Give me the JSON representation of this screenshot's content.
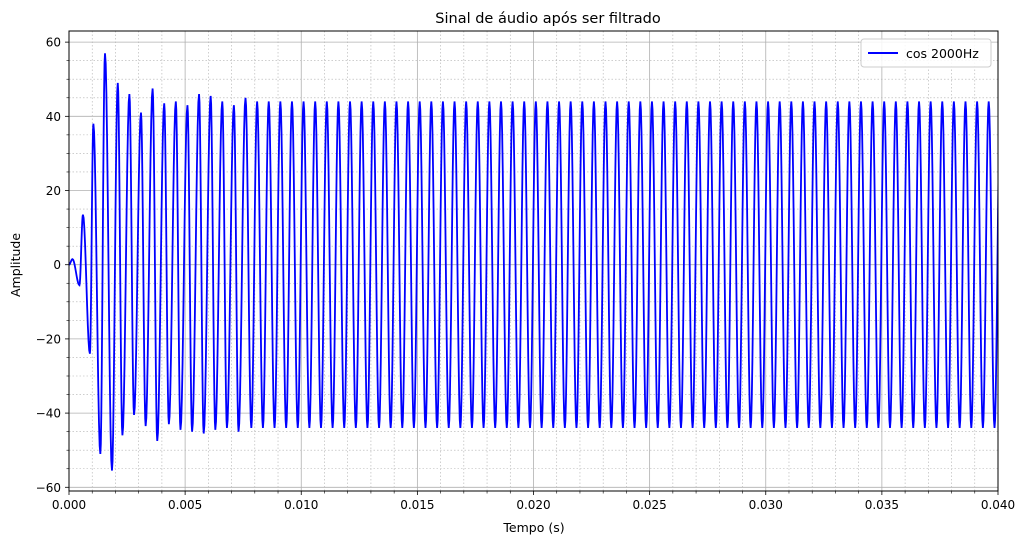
{
  "chart_data": {
    "type": "line",
    "title": "Sinal de áudio após ser filtrado",
    "xlabel": "Tempo (s)",
    "ylabel": "Amplitude",
    "xlim": [
      0.0,
      0.04
    ],
    "ylim": [
      -61,
      63
    ],
    "x_ticks": [
      "0.000",
      "0.005",
      "0.010",
      "0.015",
      "0.020",
      "0.025",
      "0.030",
      "0.035",
      "0.040"
    ],
    "y_ticks": [
      "−60",
      "−40",
      "−20",
      "0",
      "20",
      "40",
      "60"
    ],
    "grid": true,
    "minor_grid": true,
    "legend_position": "top-right",
    "series": [
      {
        "name": "cos 2000Hz",
        "color": "#0000ff",
        "frequency_hz": 2000,
        "steady_amplitude": 44,
        "duration_s": 0.04,
        "transient_extrema": [
          {
            "t": 0.00015,
            "v": 1.5
          },
          {
            "t": 0.00045,
            "v": -5.5
          },
          {
            "t": 0.0006,
            "v": 13.5
          },
          {
            "t": 0.0009,
            "v": -24.0
          },
          {
            "t": 0.00105,
            "v": 38.0
          },
          {
            "t": 0.00135,
            "v": -51.0
          },
          {
            "t": 0.00155,
            "v": 57.0
          },
          {
            "t": 0.00185,
            "v": -55.5
          },
          {
            "t": 0.0021,
            "v": 49.0
          },
          {
            "t": 0.0023,
            "v": -46.0
          },
          {
            "t": 0.0026,
            "v": 46.0
          },
          {
            "t": 0.0028,
            "v": -40.5
          },
          {
            "t": 0.0031,
            "v": 41.0
          },
          {
            "t": 0.0033,
            "v": -43.5
          },
          {
            "t": 0.0036,
            "v": 47.5
          },
          {
            "t": 0.0038,
            "v": -47.5
          },
          {
            "t": 0.0041,
            "v": 43.5
          },
          {
            "t": 0.0043,
            "v": -43.0
          },
          {
            "t": 0.0046,
            "v": 44.0
          },
          {
            "t": 0.0048,
            "v": -44.5
          },
          {
            "t": 0.0051,
            "v": 43.0
          },
          {
            "t": 0.0053,
            "v": -45.0
          },
          {
            "t": 0.0056,
            "v": 46.0
          },
          {
            "t": 0.0058,
            "v": -45.5
          },
          {
            "t": 0.0061,
            "v": 45.5
          },
          {
            "t": 0.0063,
            "v": -44.5
          },
          {
            "t": 0.0066,
            "v": 44.0
          },
          {
            "t": 0.0068,
            "v": -44.0
          },
          {
            "t": 0.0071,
            "v": 43.0
          },
          {
            "t": 0.0073,
            "v": -45.0
          },
          {
            "t": 0.0076,
            "v": 45.0
          }
        ]
      }
    ]
  }
}
